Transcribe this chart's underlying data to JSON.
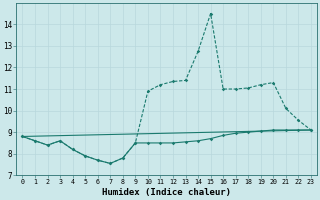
{
  "xlabel": "Humidex (Indice chaleur)",
  "bg_color": "#cce8ea",
  "grid_color": "#b8d8dc",
  "line_color": "#1a7a6e",
  "xlim": [
    -0.5,
    23.5
  ],
  "ylim": [
    7,
    15
  ],
  "yticks": [
    7,
    8,
    9,
    10,
    11,
    12,
    13,
    14
  ],
  "xticks": [
    0,
    1,
    2,
    3,
    4,
    5,
    6,
    7,
    8,
    9,
    10,
    11,
    12,
    13,
    14,
    15,
    16,
    17,
    18,
    19,
    20,
    21,
    22,
    23
  ],
  "curve_main_x": [
    0,
    1,
    2,
    3,
    4,
    5,
    6,
    7,
    8,
    9,
    10,
    11,
    12,
    13,
    14,
    15,
    16,
    17,
    18,
    19,
    20,
    21,
    22,
    23
  ],
  "curve_main_y": [
    8.8,
    8.6,
    8.4,
    8.6,
    8.2,
    7.9,
    7.7,
    7.55,
    7.8,
    8.5,
    10.9,
    11.2,
    11.35,
    11.4,
    12.75,
    14.5,
    11.0,
    11.0,
    11.05,
    11.2,
    11.3,
    10.1,
    9.55,
    9.1
  ],
  "curve_low_x": [
    0,
    1,
    2,
    3,
    4,
    5,
    6,
    7,
    8,
    9,
    10,
    11,
    12,
    13,
    14,
    15,
    16,
    17,
    18,
    19,
    20,
    21,
    22,
    23
  ],
  "curve_low_y": [
    8.8,
    8.6,
    8.4,
    8.6,
    8.2,
    7.9,
    7.7,
    7.55,
    7.8,
    8.5,
    8.5,
    8.5,
    8.5,
    8.55,
    8.6,
    8.7,
    8.85,
    8.95,
    9.0,
    9.05,
    9.1,
    9.1,
    9.1,
    9.1
  ],
  "trend_x": [
    0,
    23
  ],
  "trend_y": [
    8.8,
    9.1
  ]
}
